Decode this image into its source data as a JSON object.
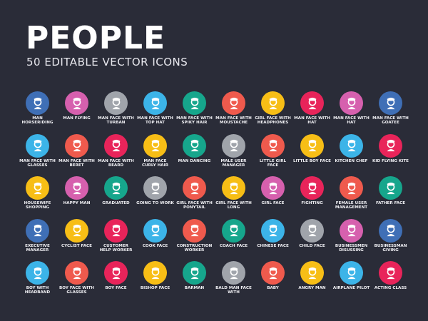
{
  "title": "PEOPLE",
  "subtitle": "50 EDITABLE VECTOR ICONS",
  "palette": {
    "blue": "#3f6fb6",
    "pink": "#d660ae",
    "gray": "#a0a4ab",
    "sky": "#3cb4e8",
    "teal": "#16a68c",
    "coral": "#ef5a4d",
    "yellow": "#f7be16",
    "red": "#e8245a"
  },
  "icons": [
    {
      "label": "MAN HORSERIDING",
      "color": "blue"
    },
    {
      "label": "MAN FLYING",
      "color": "pink"
    },
    {
      "label": "MAN FACE WITH TURBAN",
      "color": "gray"
    },
    {
      "label": "MAN FACE WITH TOP HAT",
      "color": "sky"
    },
    {
      "label": "MAN FACE WITH SPIKY HAIR",
      "color": "teal"
    },
    {
      "label": "MAN FACE WITH MOUSTACHE",
      "color": "coral"
    },
    {
      "label": "GIRL FACE WITH HEADPHONES",
      "color": "yellow"
    },
    {
      "label": "MAN FACE WITH HAT",
      "color": "red"
    },
    {
      "label": "MAN FACE WITH HAT",
      "color": "pink"
    },
    {
      "label": "MAN FACE WITH GOATEE",
      "color": "blue"
    },
    {
      "label": "MAN FACE WITH GLASSES",
      "color": "sky"
    },
    {
      "label": "MAN FACE WITH BERET",
      "color": "coral"
    },
    {
      "label": "MAN FACE WITH BEARD",
      "color": "red"
    },
    {
      "label": "MAN FACE CURLY HAIR",
      "color": "yellow"
    },
    {
      "label": "MAN DANCING",
      "color": "teal"
    },
    {
      "label": "MALE USER MANAGER",
      "color": "gray"
    },
    {
      "label": "LITTLE GIRL FACE",
      "color": "coral"
    },
    {
      "label": "LITTLE BOY FACE",
      "color": "yellow"
    },
    {
      "label": "KITCHEN CHEF",
      "color": "sky"
    },
    {
      "label": "KID FLYING KITE",
      "color": "red"
    },
    {
      "label": "HOUSEWIFE SHOPPING",
      "color": "yellow"
    },
    {
      "label": "HAPPY MAN",
      "color": "pink"
    },
    {
      "label": "GRADUATED",
      "color": "teal"
    },
    {
      "label": "GOING TO WORK",
      "color": "gray"
    },
    {
      "label": "GIRL FACE WITH PONYTAIL",
      "color": "coral"
    },
    {
      "label": "GIRL FACE WITH LONG",
      "color": "yellow"
    },
    {
      "label": "GIRL FACE",
      "color": "pink"
    },
    {
      "label": "FIGHTING",
      "color": "red"
    },
    {
      "label": "FEMALE USER MANAGEMENT",
      "color": "coral"
    },
    {
      "label": "FATHER FACE",
      "color": "teal"
    },
    {
      "label": "EXECUTIVE MANAGER",
      "color": "blue"
    },
    {
      "label": "CYCLIST FACE",
      "color": "yellow"
    },
    {
      "label": "CUSTOMER HELP WORKER",
      "color": "red"
    },
    {
      "label": "COOK FACE",
      "color": "sky"
    },
    {
      "label": "CONSTRUCTION WORKER",
      "color": "coral"
    },
    {
      "label": "COACH FACE",
      "color": "teal"
    },
    {
      "label": "CHINESE FACE",
      "color": "sky"
    },
    {
      "label": "CHILD FACE",
      "color": "gray"
    },
    {
      "label": "BUSINESSMEN DISUSSING",
      "color": "pink"
    },
    {
      "label": "BUSINESSMAN GIVING",
      "color": "blue"
    },
    {
      "label": "BOY WITH HEADBAND",
      "color": "sky"
    },
    {
      "label": "BOY FACE WITH GLASSES",
      "color": "coral"
    },
    {
      "label": "BOY FACE",
      "color": "red"
    },
    {
      "label": "BISHOP FACE",
      "color": "yellow"
    },
    {
      "label": "BARMAN",
      "color": "teal"
    },
    {
      "label": "BALD MAN FACE WITH",
      "color": "gray"
    },
    {
      "label": "BABY",
      "color": "coral"
    },
    {
      "label": "ANGRY MAN",
      "color": "yellow"
    },
    {
      "label": "AIRPLANE PILOT",
      "color": "sky"
    },
    {
      "label": "ACTING CLASS",
      "color": "red"
    }
  ]
}
